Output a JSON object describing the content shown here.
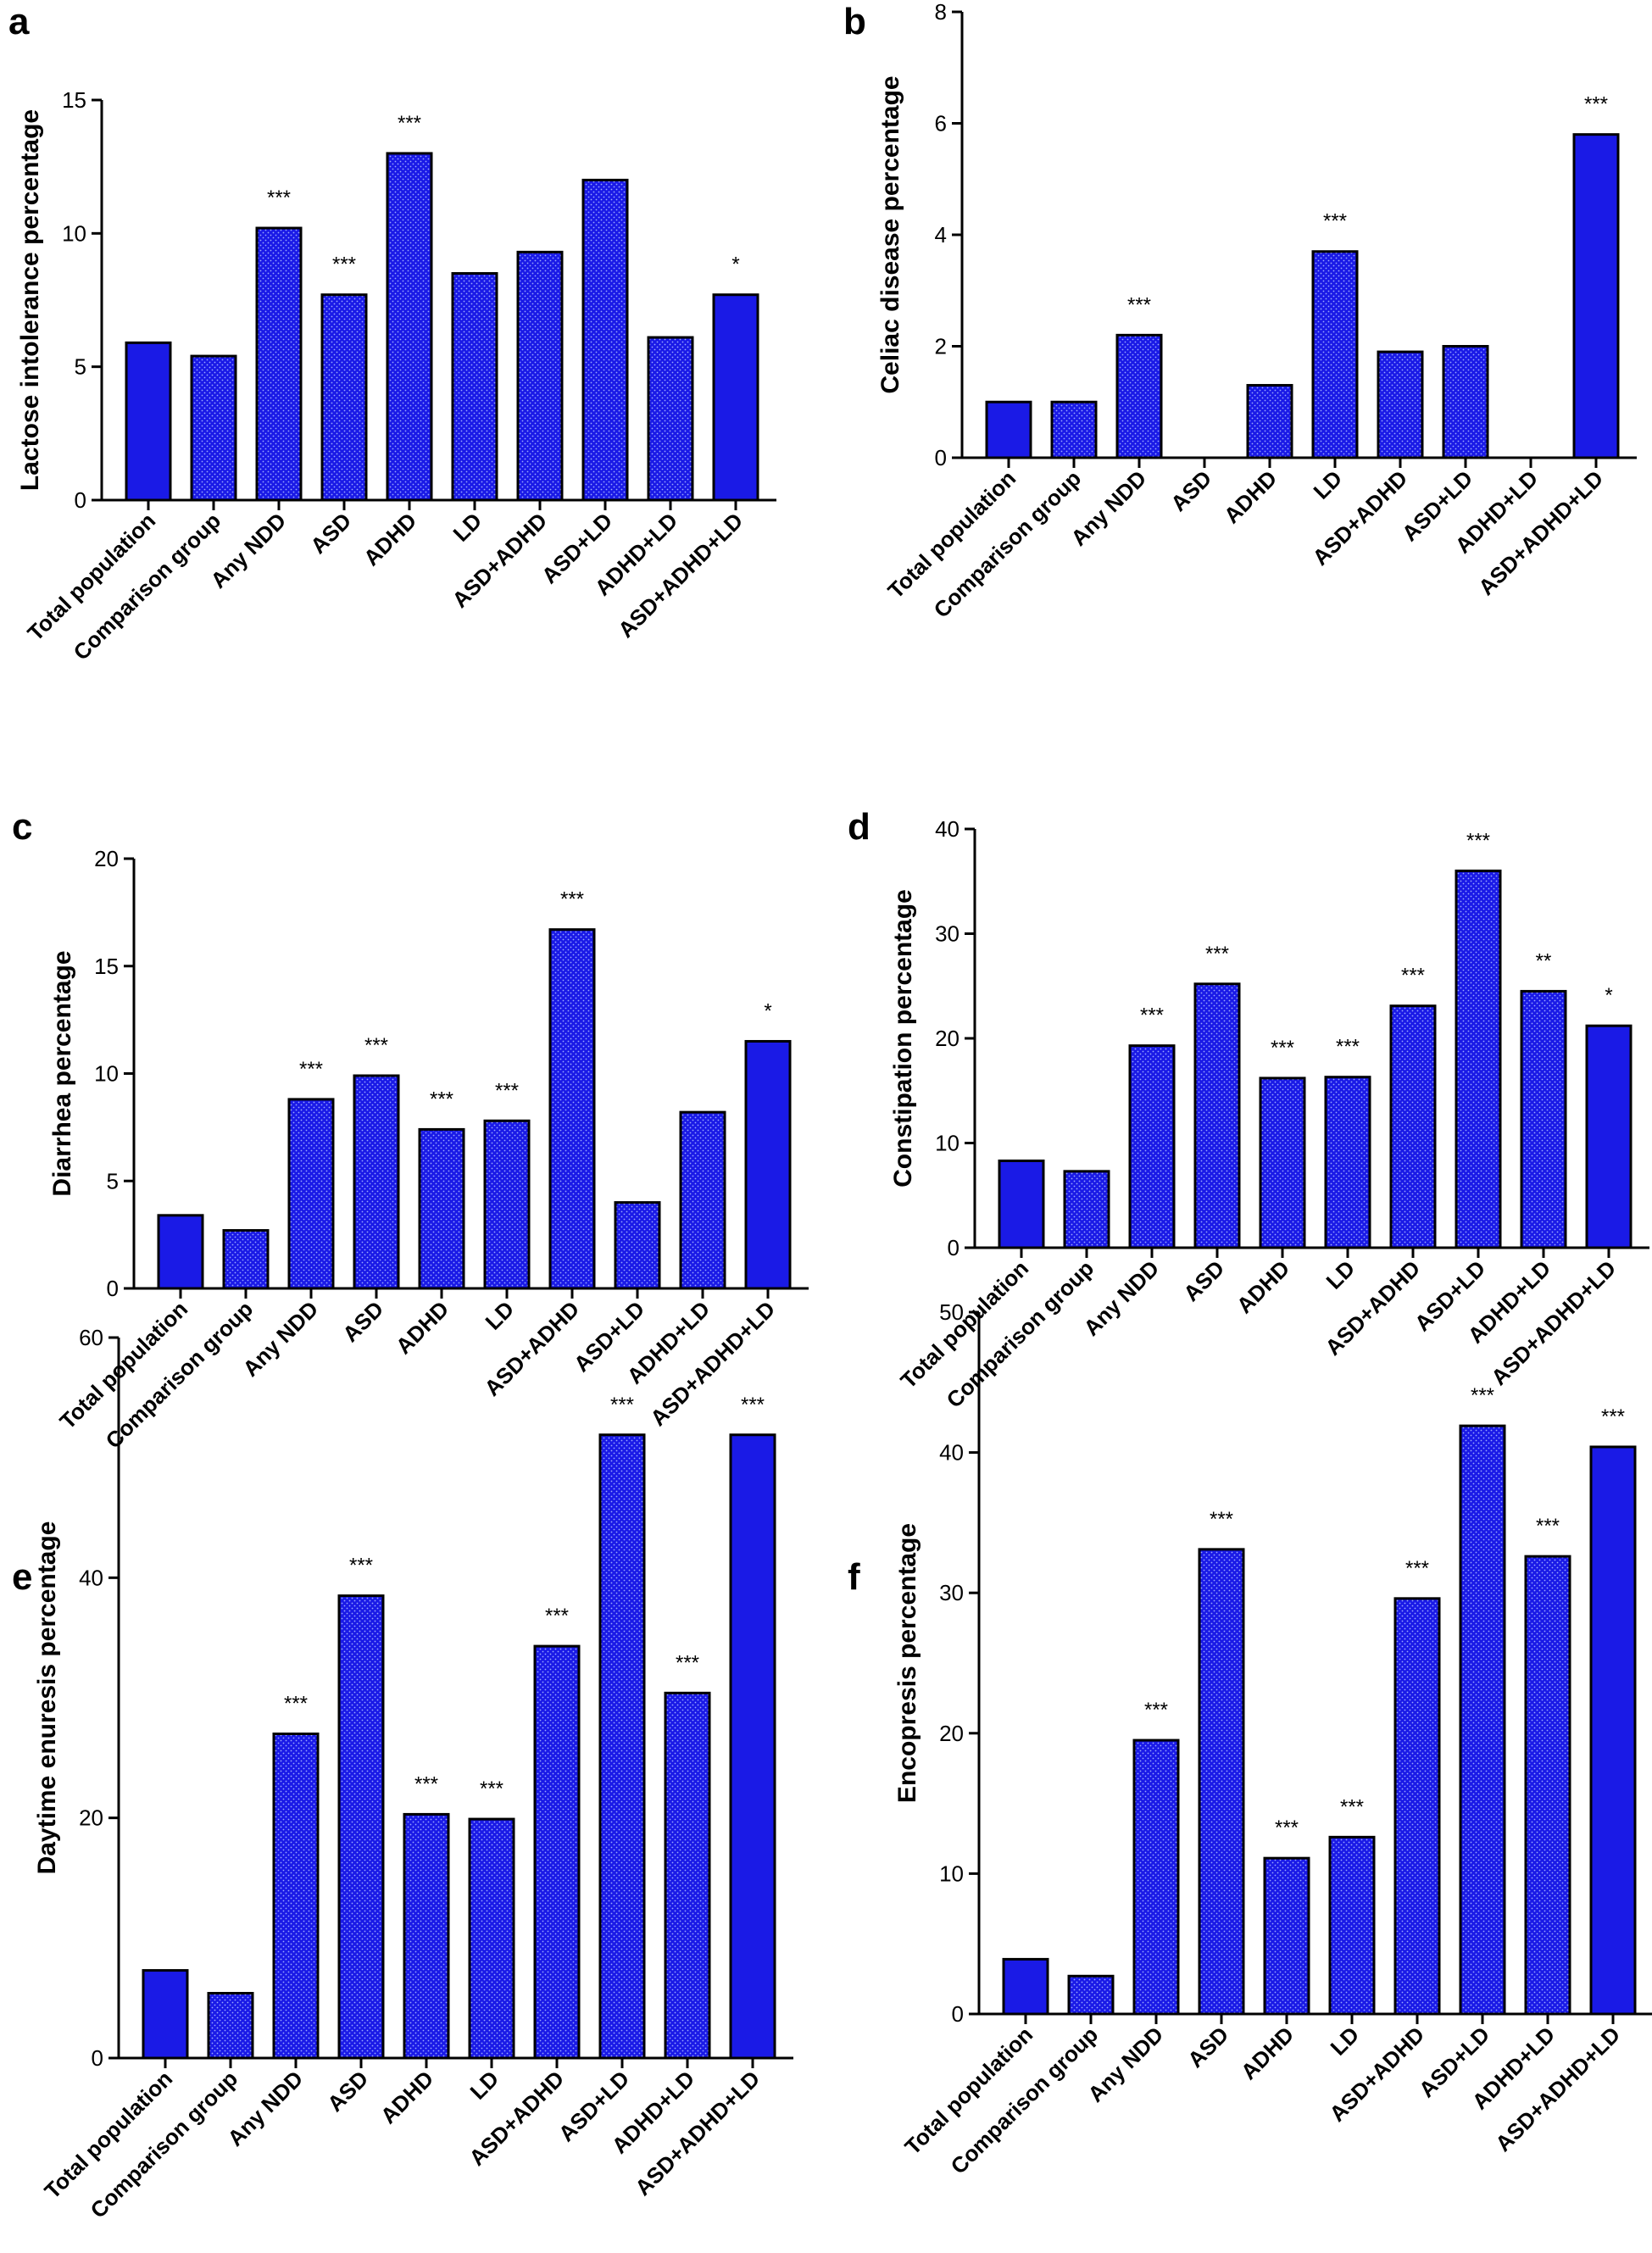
{
  "colors": {
    "bar_fill": "#1a1ae6",
    "bar_pattern_dot": "#9aa8ff",
    "bar_stroke": "#000000",
    "axis": "#000000"
  },
  "chart_data": [
    {
      "panel": "a",
      "type": "bar",
      "title": "",
      "xlabel": "",
      "ylabel": "Lactose intolerance percentage",
      "ylim": [
        0,
        15
      ],
      "yticks": [
        0,
        5,
        10,
        15
      ],
      "categories": [
        "Total population",
        "Comparison group",
        "Any NDD",
        "ASD",
        "ADHD",
        "LD",
        "ASD+ADHD",
        "ASD+LD",
        "ADHD+LD",
        "ASD+ADHD+LD"
      ],
      "values": [
        5.9,
        5.4,
        10.2,
        7.7,
        13.0,
        8.5,
        9.3,
        12.0,
        6.1,
        7.7
      ],
      "significance": [
        "",
        "",
        "***",
        "***",
        "***",
        "",
        "",
        "",
        "",
        "*"
      ]
    },
    {
      "panel": "b",
      "type": "bar",
      "title": "",
      "xlabel": "",
      "ylabel": "Celiac disease percentage",
      "ylim": [
        0,
        8
      ],
      "yticks": [
        0,
        2,
        4,
        6,
        8
      ],
      "categories": [
        "Total population",
        "Comparison group",
        "Any NDD",
        "ASD",
        "ADHD",
        "LD",
        "ASD+ADHD",
        "ASD+LD",
        "ADHD+LD",
        "ASD+ADHD+LD"
      ],
      "values": [
        1.0,
        1.0,
        2.2,
        0,
        1.3,
        3.7,
        1.9,
        2.0,
        0,
        5.8
      ],
      "significance": [
        "",
        "",
        "***",
        "",
        "",
        "***",
        "",
        "",
        "",
        "***"
      ]
    },
    {
      "panel": "c",
      "type": "bar",
      "title": "",
      "xlabel": "",
      "ylabel": "Diarrhea percentage",
      "ylim": [
        0,
        20
      ],
      "yticks": [
        0,
        5,
        10,
        15,
        20
      ],
      "categories": [
        "Total population",
        "Comparison group",
        "Any NDD",
        "ASD",
        "ADHD",
        "LD",
        "ASD+ADHD",
        "ASD+LD",
        "ADHD+LD",
        "ASD+ADHD+LD"
      ],
      "values": [
        3.4,
        2.7,
        8.8,
        9.9,
        7.4,
        7.8,
        16.7,
        4.0,
        8.2,
        11.5
      ],
      "significance": [
        "",
        "",
        "***",
        "***",
        "***",
        "***",
        "***",
        "",
        "",
        "*"
      ]
    },
    {
      "panel": "d",
      "type": "bar",
      "title": "",
      "xlabel": "",
      "ylabel": "Constipation percentage",
      "ylim": [
        0,
        40
      ],
      "yticks": [
        0,
        10,
        20,
        30,
        40
      ],
      "categories": [
        "Total population",
        "Comparison group",
        "Any NDD",
        "ASD",
        "ADHD",
        "LD",
        "ASD+ADHD",
        "ASD+LD",
        "ADHD+LD",
        "ASD+ADHD+LD"
      ],
      "values": [
        8.3,
        7.3,
        19.3,
        25.2,
        16.2,
        16.3,
        23.1,
        36.0,
        24.5,
        21.2
      ],
      "significance": [
        "",
        "",
        "***",
        "***",
        "***",
        "***",
        "***",
        "***",
        "**",
        "*"
      ]
    },
    {
      "panel": "e",
      "type": "bar",
      "title": "",
      "xlabel": "",
      "ylabel": "Daytime enuresis percentage",
      "ylim": [
        0,
        60
      ],
      "yticks": [
        0,
        20,
        40,
        60
      ],
      "categories": [
        "Total population",
        "Comparison group",
        "Any NDD",
        "ASD",
        "ADHD",
        "LD",
        "ASD+ADHD",
        "ASD+LD",
        "ADHD+LD",
        "ASD+ADHD+LD"
      ],
      "values": [
        7.3,
        5.4,
        27.0,
        38.5,
        20.3,
        19.9,
        34.3,
        51.9,
        30.4,
        51.9
      ],
      "significance": [
        "",
        "",
        "***",
        "***",
        "***",
        "***",
        "***",
        "***",
        "***",
        "***"
      ]
    },
    {
      "panel": "f",
      "type": "bar",
      "title": "",
      "xlabel": "",
      "ylabel": "Encopresis percentage",
      "ylim": [
        0,
        50
      ],
      "yticks": [
        0,
        10,
        20,
        30,
        40,
        50
      ],
      "categories": [
        "Total population",
        "Comparison group",
        "Any NDD",
        "ASD",
        "ADHD",
        "LD",
        "ASD+ADHD",
        "ASD+LD",
        "ADHD+LD",
        "ASD+ADHD+LD"
      ],
      "values": [
        3.9,
        2.7,
        19.5,
        33.1,
        11.1,
        12.6,
        29.6,
        41.9,
        32.6,
        40.4
      ],
      "significance": [
        "",
        "",
        "***",
        "***",
        "***",
        "***",
        "***",
        "***",
        "***",
        "***"
      ]
    }
  ]
}
